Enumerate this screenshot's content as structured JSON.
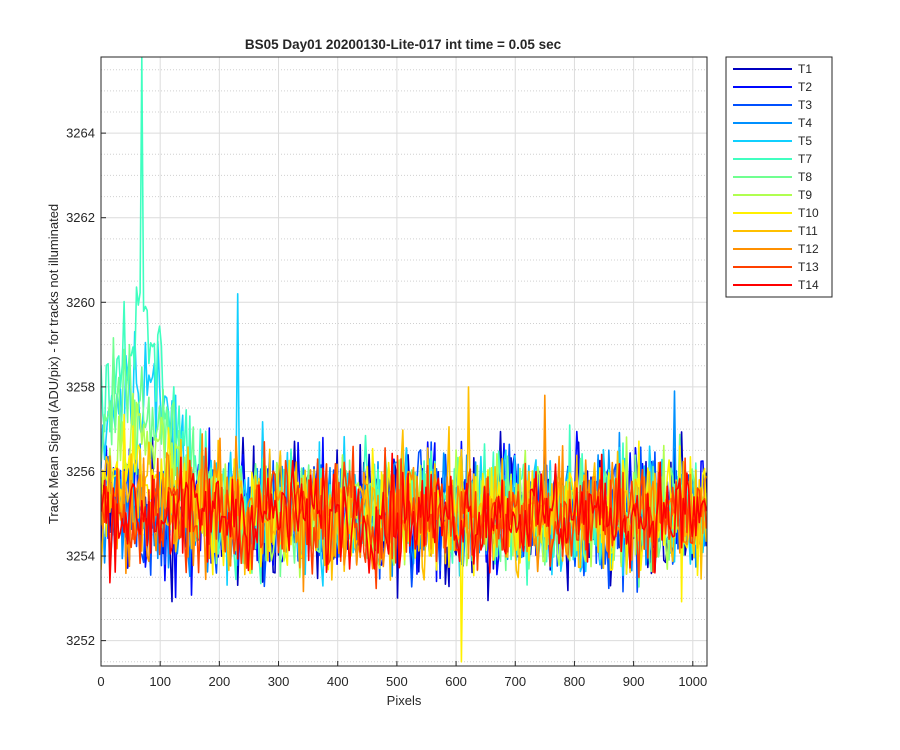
{
  "chart_data": {
    "type": "line",
    "title": "BS05 Day01 20200130-Lite-017 int time = 0.05 sec",
    "xlabel": "Pixels",
    "ylabel": "Track Mean Signal (ADU/pix) - for tracks not illuminated",
    "xlim": [
      0,
      1024
    ],
    "ylim": [
      3251.4,
      3265.8
    ],
    "xticks": [
      0,
      100,
      200,
      300,
      400,
      500,
      600,
      700,
      800,
      900,
      1000
    ],
    "yticks": [
      3252,
      3254,
      3256,
      3258,
      3260,
      3262,
      3264
    ],
    "grid": true,
    "minor_grid": true,
    "legend_position": "outside-top-right",
    "series": [
      {
        "name": "T1",
        "color": "#0000BF",
        "mean": 3255.0,
        "sd": 0.8,
        "early_boost": 0.0,
        "spike": null
      },
      {
        "name": "T2",
        "color": "#0008FF",
        "mean": 3255.0,
        "sd": 0.8,
        "early_boost": 0.0,
        "spike": null
      },
      {
        "name": "T3",
        "color": "#0050FF",
        "mean": 3255.0,
        "sd": 0.75,
        "early_boost": 0.0,
        "spike": null
      },
      {
        "name": "T4",
        "color": "#0090FF",
        "mean": 3255.0,
        "sd": 0.75,
        "early_boost": 0.0,
        "spike": [
          970,
          3257.9
        ]
      },
      {
        "name": "T5",
        "color": "#10D0FF",
        "mean": 3255.1,
        "sd": 0.72,
        "early_boost": 3.2,
        "spike": [
          230,
          3260.2
        ]
      },
      {
        "name": "T7",
        "color": "#40FFC0",
        "mean": 3255.1,
        "sd": 0.72,
        "early_boost": 4.2,
        "spike": [
          68,
          3265.8
        ]
      },
      {
        "name": "T8",
        "color": "#70FF90",
        "mean": 3255.0,
        "sd": 0.7,
        "early_boost": 2.8,
        "spike": null
      },
      {
        "name": "T9",
        "color": "#B0FF50",
        "mean": 3255.0,
        "sd": 0.7,
        "early_boost": 1.8,
        "spike": null
      },
      {
        "name": "T10",
        "color": "#FFF000",
        "mean": 3255.0,
        "sd": 0.7,
        "early_boost": 1.0,
        "spike": [
          610,
          3251.5
        ]
      },
      {
        "name": "T11",
        "color": "#FFC000",
        "mean": 3255.0,
        "sd": 0.7,
        "early_boost": 0.5,
        "spike": [
          620,
          3258.0
        ]
      },
      {
        "name": "T12",
        "color": "#FF9000",
        "mean": 3255.0,
        "sd": 0.7,
        "early_boost": 0.2,
        "spike": [
          750,
          3257.8
        ]
      },
      {
        "name": "T13",
        "color": "#FF4000",
        "mean": 3255.0,
        "sd": 0.7,
        "early_boost": 0.0,
        "spike": null
      },
      {
        "name": "T14",
        "color": "#FF0000",
        "mean": 3255.0,
        "sd": 0.6,
        "early_boost": 0.0,
        "spike": null
      }
    ]
  }
}
